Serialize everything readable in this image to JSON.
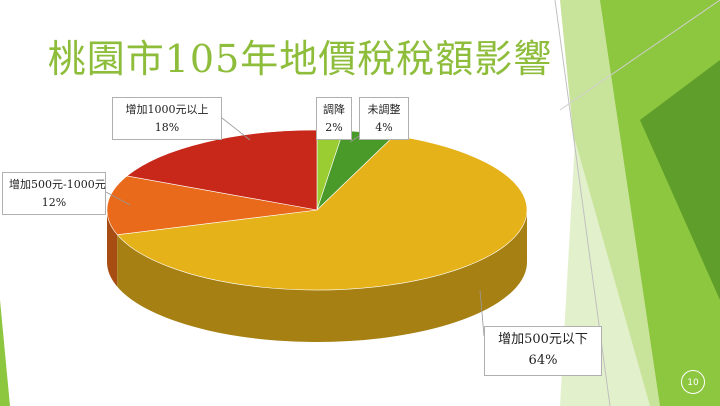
{
  "slide": {
    "title": "桃園市105年地價稅稅額影響",
    "page_number": "10"
  },
  "chart_data": {
    "type": "pie",
    "title": "",
    "style": "3d",
    "slices": [
      {
        "label": "調降",
        "value": 2,
        "value_label": "2%",
        "color": "#9acd32"
      },
      {
        "label": "未調整",
        "value": 4,
        "value_label": "4%",
        "color": "#4a9a2a"
      },
      {
        "label": "增加500元以下",
        "value": 64,
        "value_label": "64%",
        "color": "#e6b219"
      },
      {
        "label": "增加500元-1000元",
        "value": 12,
        "value_label": "12%",
        "color": "#e86a1a"
      },
      {
        "label": "增加1000元以上",
        "value": 18,
        "value_label": "18%",
        "color": "#c8281a"
      }
    ]
  },
  "theme": {
    "accent_green": "#8dbd3a",
    "dark_green": "#4f8a1e"
  }
}
